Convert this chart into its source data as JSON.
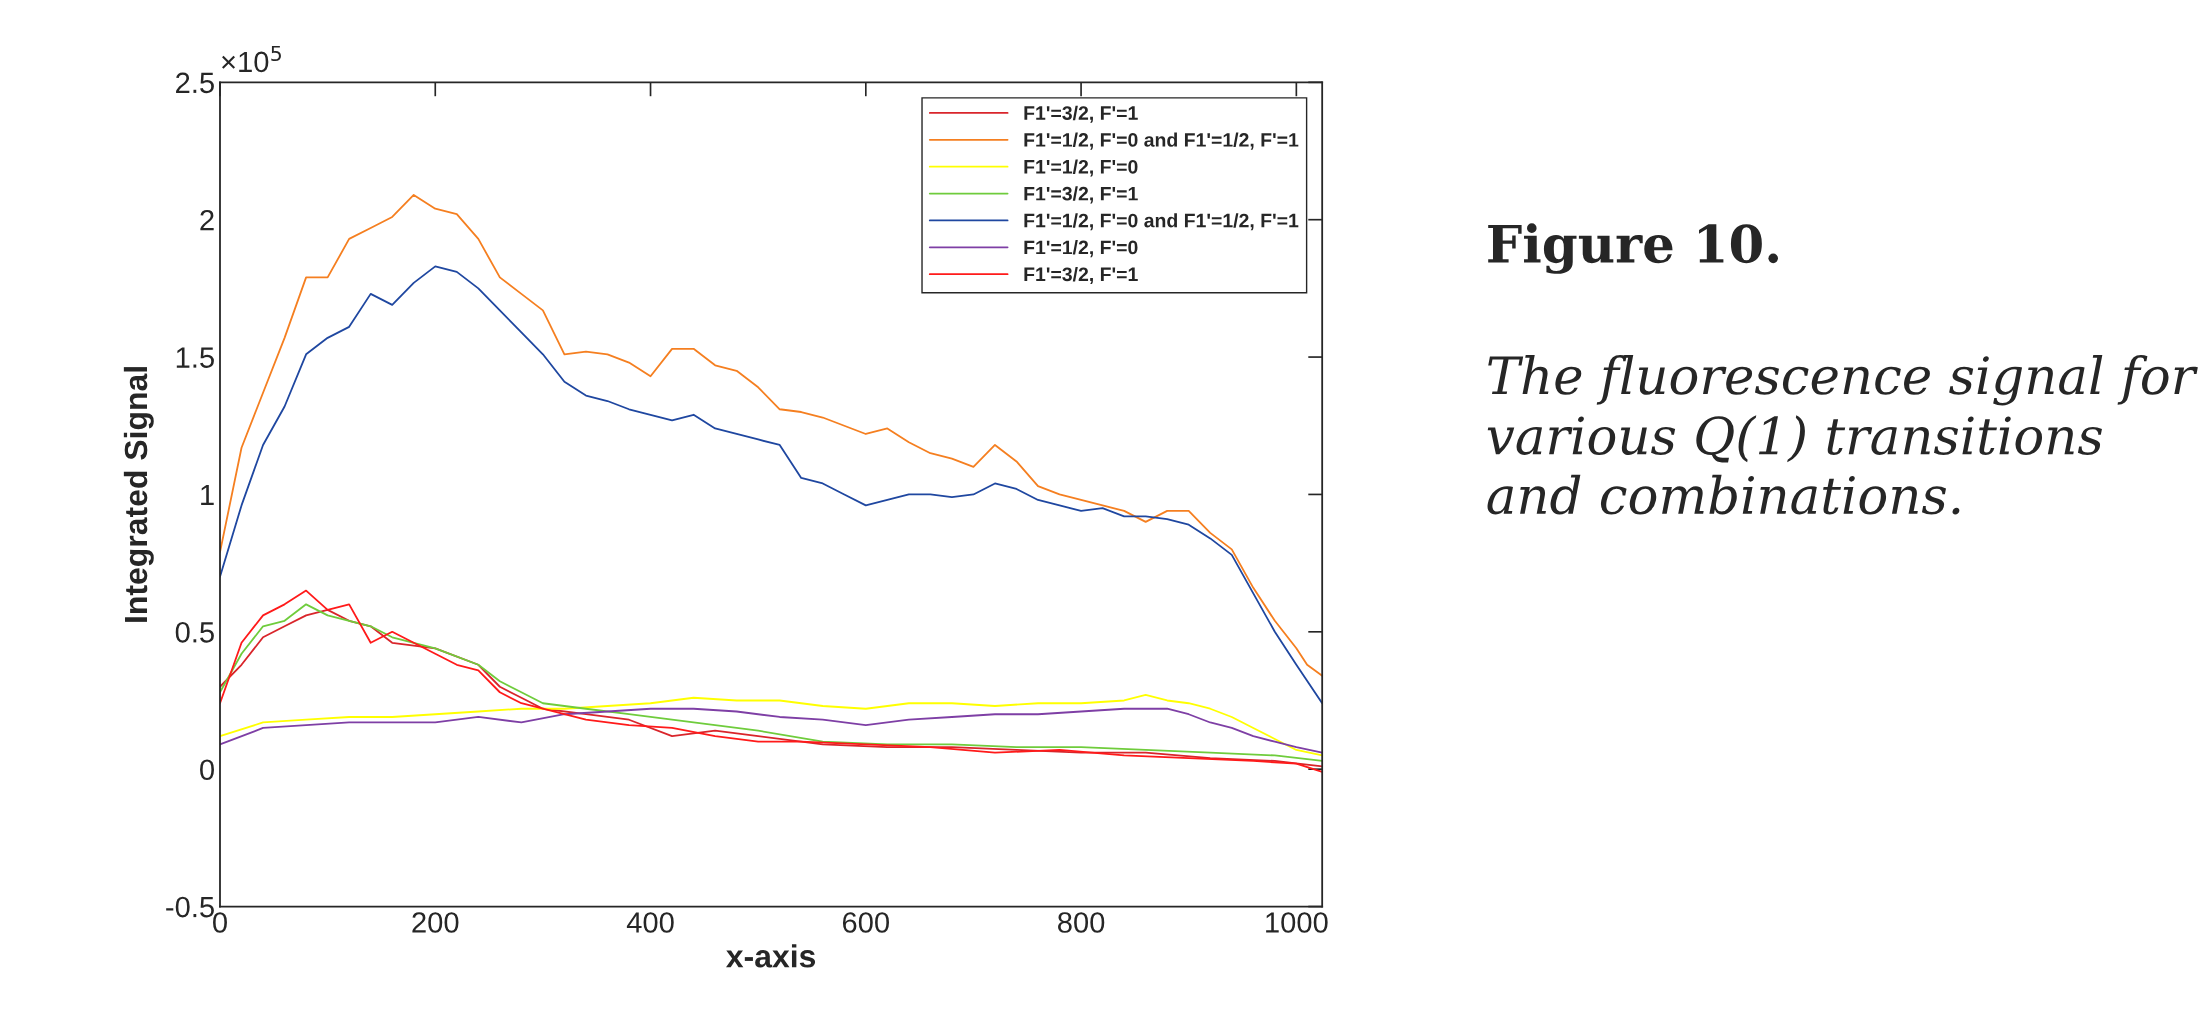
{
  "chart_data": {
    "type": "line",
    "xlabel": "x-axis",
    "ylabel": "Integrated Signal",
    "xlim": [
      0,
      1024
    ],
    "xticks": [
      0,
      200,
      400,
      600,
      800,
      1000
    ],
    "ylim": [
      -0.5,
      2.5
    ],
    "yticks": [
      -0.5,
      0,
      0.5,
      1,
      1.5,
      2,
      2.5
    ],
    "legend": "top right",
    "grid": false,
    "annotations": [
      "×10$^{5}$",
      "Figure 10.",
      "The fluorescence signal for various Q(1) transitions and combinations."
    ],
    "series": [
      {
        "name": "F1'=3/2, F'=1",
        "color": "#d9252b",
        "x": [
          0,
          20,
          40,
          60,
          80,
          100,
          120,
          140,
          160,
          200,
          240,
          260,
          280,
          300,
          340,
          380,
          420,
          460,
          500,
          560,
          620,
          680,
          740,
          800,
          860,
          920,
          980,
          1024
        ],
        "values": [
          0.3,
          0.38,
          0.48,
          0.52,
          0.56,
          0.58,
          0.54,
          0.52,
          0.46,
          0.44,
          0.38,
          0.3,
          0.26,
          0.22,
          0.2,
          0.18,
          0.12,
          0.14,
          0.12,
          0.09,
          0.08,
          0.08,
          0.07,
          0.06,
          0.06,
          0.04,
          0.03,
          0.01
        ]
      },
      {
        "name": "F1'=1/2, F'=0 and F1'=1/2, F'=1",
        "color": "#f57f20",
        "x": [
          0,
          20,
          40,
          60,
          80,
          100,
          120,
          140,
          160,
          180,
          200,
          220,
          240,
          260,
          280,
          300,
          320,
          340,
          360,
          380,
          400,
          420,
          440,
          460,
          480,
          500,
          520,
          540,
          560,
          600,
          620,
          640,
          660,
          680,
          700,
          720,
          740,
          760,
          780,
          800,
          820,
          840,
          860,
          880,
          900,
          920,
          940,
          960,
          980,
          1000,
          1010,
          1024
        ],
        "values": [
          0.79,
          1.17,
          1.37,
          1.57,
          1.79,
          1.79,
          1.93,
          1.97,
          2.01,
          2.09,
          2.04,
          2.02,
          1.93,
          1.79,
          1.73,
          1.67,
          1.51,
          1.52,
          1.51,
          1.48,
          1.43,
          1.53,
          1.53,
          1.47,
          1.45,
          1.39,
          1.31,
          1.3,
          1.28,
          1.22,
          1.24,
          1.19,
          1.15,
          1.13,
          1.1,
          1.18,
          1.12,
          1.03,
          1.0,
          0.98,
          0.96,
          0.94,
          0.9,
          0.94,
          0.94,
          0.86,
          0.8,
          0.66,
          0.54,
          0.44,
          0.38,
          0.34
        ]
      },
      {
        "name": "F1'=1/2, F'=0",
        "color": "#ffff00",
        "x": [
          0,
          40,
          80,
          120,
          160,
          200,
          240,
          280,
          320,
          360,
          400,
          440,
          480,
          520,
          560,
          600,
          640,
          680,
          720,
          760,
          800,
          840,
          860,
          880,
          900,
          920,
          940,
          960,
          980,
          1000,
          1024
        ],
        "values": [
          0.12,
          0.17,
          0.18,
          0.19,
          0.19,
          0.2,
          0.21,
          0.22,
          0.22,
          0.23,
          0.24,
          0.26,
          0.25,
          0.25,
          0.23,
          0.22,
          0.24,
          0.24,
          0.23,
          0.24,
          0.24,
          0.25,
          0.27,
          0.25,
          0.24,
          0.22,
          0.19,
          0.15,
          0.11,
          0.07,
          0.05
        ]
      },
      {
        "name": "F1'=3/2, F'=1",
        "color": "#6fcc3c",
        "x": [
          0,
          20,
          40,
          60,
          80,
          100,
          120,
          140,
          160,
          200,
          240,
          260,
          280,
          300,
          340,
          380,
          420,
          460,
          500,
          560,
          620,
          680,
          740,
          800,
          860,
          920,
          980,
          1024
        ],
        "values": [
          0.28,
          0.42,
          0.52,
          0.54,
          0.6,
          0.56,
          0.54,
          0.52,
          0.48,
          0.44,
          0.38,
          0.32,
          0.28,
          0.24,
          0.22,
          0.2,
          0.18,
          0.16,
          0.14,
          0.1,
          0.09,
          0.09,
          0.08,
          0.08,
          0.07,
          0.06,
          0.05,
          0.03
        ]
      },
      {
        "name": "F1'=1/2, F'=0 and F1'=1/2, F'=1",
        "color": "#1f47a0",
        "x": [
          0,
          20,
          40,
          60,
          80,
          100,
          120,
          140,
          160,
          180,
          200,
          220,
          240,
          260,
          280,
          300,
          320,
          340,
          360,
          380,
          400,
          420,
          440,
          460,
          480,
          500,
          520,
          540,
          560,
          580,
          600,
          620,
          640,
          660,
          680,
          700,
          720,
          740,
          760,
          780,
          800,
          820,
          840,
          860,
          880,
          900,
          920,
          940,
          960,
          980,
          1000,
          1024
        ],
        "values": [
          0.7,
          0.96,
          1.18,
          1.32,
          1.51,
          1.57,
          1.61,
          1.73,
          1.69,
          1.77,
          1.83,
          1.81,
          1.75,
          1.67,
          1.59,
          1.51,
          1.41,
          1.36,
          1.34,
          1.31,
          1.29,
          1.27,
          1.29,
          1.24,
          1.22,
          1.2,
          1.18,
          1.06,
          1.04,
          1.0,
          0.96,
          0.98,
          1.0,
          1.0,
          0.99,
          1.0,
          1.04,
          1.02,
          0.98,
          0.96,
          0.94,
          0.95,
          0.92,
          0.92,
          0.91,
          0.89,
          0.84,
          0.78,
          0.64,
          0.5,
          0.38,
          0.24
        ]
      },
      {
        "name": "F1'=1/2, F'=0",
        "color": "#7e3fa5",
        "x": [
          0,
          40,
          80,
          120,
          160,
          200,
          240,
          280,
          320,
          360,
          400,
          440,
          480,
          520,
          560,
          600,
          640,
          680,
          720,
          760,
          800,
          840,
          880,
          900,
          920,
          940,
          960,
          980,
          1000,
          1024
        ],
        "values": [
          0.09,
          0.15,
          0.16,
          0.17,
          0.17,
          0.17,
          0.19,
          0.17,
          0.2,
          0.21,
          0.22,
          0.22,
          0.21,
          0.19,
          0.18,
          0.16,
          0.18,
          0.19,
          0.2,
          0.2,
          0.21,
          0.22,
          0.22,
          0.2,
          0.17,
          0.15,
          0.12,
          0.1,
          0.08,
          0.06
        ]
      },
      {
        "name": "F1'=3/2, F'=1",
        "color": "#ff1a1a",
        "x": [
          0,
          20,
          40,
          60,
          80,
          100,
          120,
          140,
          160,
          180,
          200,
          220,
          240,
          260,
          280,
          300,
          340,
          380,
          420,
          460,
          500,
          540,
          600,
          660,
          720,
          780,
          840,
          900,
          960,
          1000,
          1024
        ],
        "values": [
          0.24,
          0.46,
          0.56,
          0.6,
          0.65,
          0.58,
          0.6,
          0.46,
          0.5,
          0.46,
          0.42,
          0.38,
          0.36,
          0.28,
          0.24,
          0.22,
          0.18,
          0.16,
          0.15,
          0.12,
          0.1,
          0.1,
          0.09,
          0.08,
          0.06,
          0.07,
          0.05,
          0.04,
          0.03,
          0.02,
          -0.01
        ]
      }
    ]
  }
}
